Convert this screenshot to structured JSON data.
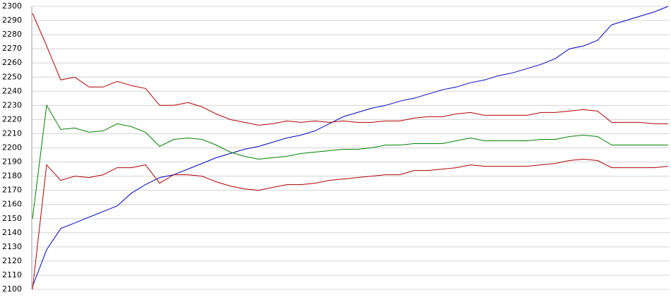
{
  "chart_data": {
    "type": "line",
    "ylim": [
      2100,
      2300
    ],
    "yticks": [
      2100,
      2110,
      2120,
      2130,
      2140,
      2150,
      2160,
      2170,
      2180,
      2190,
      2200,
      2210,
      2220,
      2230,
      2240,
      2250,
      2260,
      2270,
      2280,
      2290,
      2300
    ],
    "grid": true,
    "series": [
      {
        "color": "#0000c0",
        "values": [
          2102,
          2128,
          2143,
          2147,
          2151,
          2155,
          2159,
          2168,
          2174,
          2179,
          2181,
          2185,
          2189,
          2193,
          2196,
          2199,
          2201,
          2204,
          2207,
          2209,
          2212,
          2217,
          2222,
          2225,
          2228,
          2230,
          2233,
          2235,
          2238,
          2241,
          2243,
          2246,
          2248,
          2251,
          2253,
          2256,
          2259,
          2263,
          2270,
          2272,
          2276,
          2287,
          2290,
          2293,
          2296,
          2300
        ]
      },
      {
        "color": "#b00000",
        "values": [
          2295,
          2272,
          2248,
          2250,
          2243,
          2243,
          2247,
          2244,
          2242,
          2230,
          2230,
          2232,
          2229,
          2224,
          2220,
          2218,
          2216,
          2217,
          2219,
          2218,
          2219,
          2218,
          2219,
          2218,
          2218,
          2219,
          2219,
          2221,
          2222,
          2222,
          2224,
          2225,
          2223,
          2223,
          2223,
          2223,
          2225,
          2225,
          2226,
          2227,
          2226,
          2218,
          2218,
          2218,
          2217,
          2217
        ]
      },
      {
        "color": "#008000",
        "values": [
          2150,
          2230,
          2213,
          2214,
          2211,
          2212,
          2217,
          2215,
          2211,
          2201,
          2206,
          2207,
          2206,
          2202,
          2197,
          2194,
          2192,
          2193,
          2194,
          2196,
          2197,
          2198,
          2199,
          2199,
          2200,
          2202,
          2202,
          2203,
          2203,
          2203,
          2205,
          2207,
          2205,
          2205,
          2205,
          2205,
          2206,
          2206,
          2208,
          2209,
          2208,
          2202,
          2202,
          2202,
          2202,
          2202
        ]
      },
      {
        "color": "#b00000",
        "values": [
          2100,
          2188,
          2177,
          2180,
          2179,
          2181,
          2186,
          2186,
          2188,
          2175,
          2181,
          2181,
          2180,
          2176,
          2173,
          2171,
          2170,
          2172,
          2174,
          2174,
          2175,
          2177,
          2178,
          2179,
          2180,
          2181,
          2181,
          2184,
          2184,
          2185,
          2186,
          2188,
          2187,
          2187,
          2187,
          2187,
          2188,
          2189,
          2191,
          2192,
          2191,
          2186,
          2186,
          2186,
          2186,
          2187
        ]
      }
    ]
  }
}
